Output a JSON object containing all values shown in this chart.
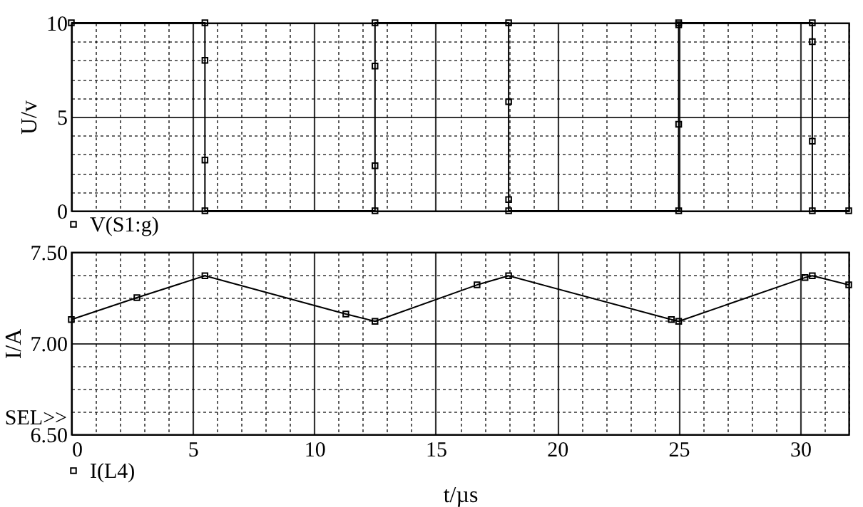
{
  "chart_data": [
    {
      "type": "line",
      "ylabel": "U/v",
      "xlim": [
        0,
        32
      ],
      "ylim": [
        0,
        10
      ],
      "xticks": [
        0,
        {
          "value": 1,
          "label": null
        },
        {
          "value": 2,
          "label": null
        },
        {
          "value": 3,
          "label": null
        },
        {
          "value": 4,
          "label": null
        },
        5,
        {
          "value": 6,
          "label": null
        },
        {
          "value": 7,
          "label": null
        },
        {
          "value": 8,
          "label": null
        },
        {
          "value": 9,
          "label": null
        },
        10,
        {
          "value": 11,
          "label": null
        },
        {
          "value": 12,
          "label": null
        },
        {
          "value": 13,
          "label": null
        },
        {
          "value": 14,
          "label": null
        },
        15,
        {
          "value": 16,
          "label": null
        },
        {
          "value": 17,
          "label": null
        },
        {
          "value": 18,
          "label": null
        },
        {
          "value": 19,
          "label": null
        },
        20,
        {
          "value": 21,
          "label": null
        },
        {
          "value": 22,
          "label": null
        },
        {
          "value": 23,
          "label": null
        },
        {
          "value": 24,
          "label": null
        },
        25,
        {
          "value": 26,
          "label": null
        },
        {
          "value": 27,
          "label": null
        },
        {
          "value": 28,
          "label": null
        },
        {
          "value": 29,
          "label": null
        },
        30,
        {
          "value": 31,
          "label": null
        },
        {
          "value": 32,
          "label": null
        }
      ],
      "yticks": [
        0,
        {
          "value": 1,
          "label": null
        },
        {
          "value": 2,
          "label": null
        },
        {
          "value": 3,
          "label": null
        },
        {
          "value": 4,
          "label": null
        },
        5,
        {
          "value": 6,
          "label": null
        },
        {
          "value": 7,
          "label": null
        },
        {
          "value": 8,
          "label": null
        },
        {
          "value": 9,
          "label": null
        },
        10
      ],
      "tick_labels": "y",
      "grid": true,
      "legend": "bottom left",
      "marker": "square",
      "line_style": "solid",
      "series": [
        {
          "name": "V(S1:g)",
          "color": "#000000",
          "x": [
            0,
            5.5,
            5.5,
            5.5,
            5.5,
            12.5,
            12.5,
            12.5,
            12.5,
            18,
            18,
            18,
            18,
            25,
            25,
            25,
            25,
            30.5,
            30.5,
            30.5,
            30.5,
            32
          ],
          "values": [
            10,
            10,
            8.0,
            2.7,
            0,
            0,
            2.4,
            7.7,
            10,
            10,
            5.8,
            0.6,
            0,
            0,
            4.6,
            9.9,
            10,
            10,
            9.0,
            3.7,
            0,
            0
          ]
        }
      ]
    },
    {
      "type": "line",
      "xlabel": "t/µs",
      "ylabel": "I/A",
      "xlim": [
        0,
        32
      ],
      "ylim": [
        6.5,
        7.5
      ],
      "xticks": [
        0,
        {
          "value": 1,
          "label": null
        },
        {
          "value": 2,
          "label": null
        },
        {
          "value": 3,
          "label": null
        },
        {
          "value": 4,
          "label": null
        },
        5,
        {
          "value": 6,
          "label": null
        },
        {
          "value": 7,
          "label": null
        },
        {
          "value": 8,
          "label": null
        },
        {
          "value": 9,
          "label": null
        },
        10,
        {
          "value": 11,
          "label": null
        },
        {
          "value": 12,
          "label": null
        },
        {
          "value": 13,
          "label": null
        },
        {
          "value": 14,
          "label": null
        },
        15,
        {
          "value": 16,
          "label": null
        },
        {
          "value": 17,
          "label": null
        },
        {
          "value": 18,
          "label": null
        },
        {
          "value": 19,
          "label": null
        },
        20,
        {
          "value": 21,
          "label": null
        },
        {
          "value": 22,
          "label": null
        },
        {
          "value": 23,
          "label": null
        },
        {
          "value": 24,
          "label": null
        },
        25,
        {
          "value": 26,
          "label": null
        },
        {
          "value": 27,
          "label": null
        },
        {
          "value": 28,
          "label": null
        },
        {
          "value": 29,
          "label": null
        },
        30,
        {
          "value": 31,
          "label": null
        },
        {
          "value": 32,
          "label": null
        }
      ],
      "yticks": [
        {
          "value": 6.5,
          "label": "6.50"
        },
        {
          "value": 6.625,
          "label": null
        },
        {
          "value": 6.75,
          "label": null
        },
        {
          "value": 6.875,
          "label": null
        },
        {
          "value": 7.0,
          "label": "7.00"
        },
        {
          "value": 7.125,
          "label": null
        },
        {
          "value": 7.25,
          "label": null
        },
        {
          "value": 7.375,
          "label": null
        },
        {
          "value": 7.5,
          "label": "7.50"
        }
      ],
      "grid": true,
      "legend": "bottom left",
      "marker": "square",
      "line_style": "solid",
      "annotations": [
        "SEL>>"
      ],
      "series": [
        {
          "name": "I(L4)",
          "color": "#000000",
          "x": [
            0,
            2.7,
            5.5,
            11.3,
            12.5,
            16.7,
            18,
            24.7,
            25,
            30.2,
            30.5,
            32
          ],
          "values": [
            7.13,
            7.25,
            7.37,
            7.16,
            7.12,
            7.32,
            7.37,
            7.13,
            7.12,
            7.36,
            7.37,
            7.32
          ]
        }
      ]
    }
  ]
}
